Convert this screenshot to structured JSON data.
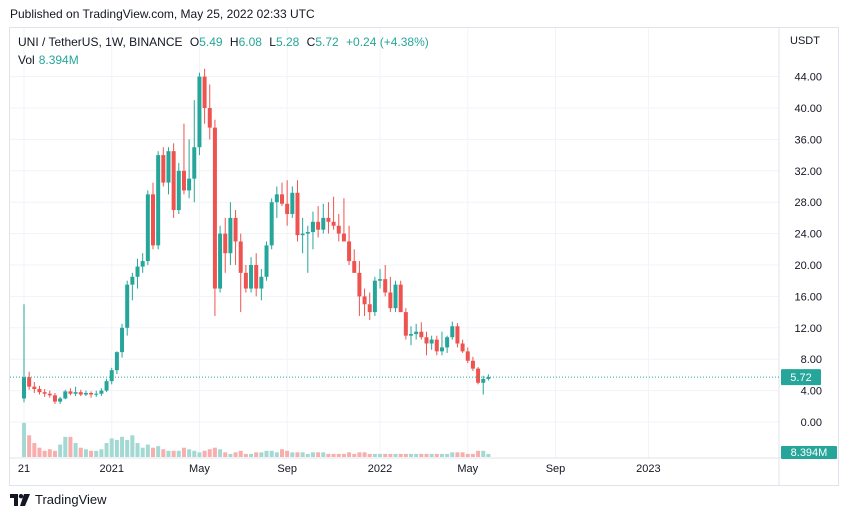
{
  "header": {
    "published": "Published on TradingView.com, May 25, 2022 02:33 UTC"
  },
  "legend": {
    "symbol": "UNI / TetherUS, 1W, BINANCE",
    "o_label": "O",
    "o": "5.49",
    "h_label": "H",
    "h": "6.08",
    "l_label": "L",
    "l": "5.28",
    "c_label": "C",
    "c": "5.72",
    "change": "+0.24 (+4.38%)",
    "vol_label": "Vol",
    "vol": "8.394M"
  },
  "currency": "USDT",
  "footer": {
    "brand": "TradingView"
  },
  "colors": {
    "up": "#26a69a",
    "down": "#ef5350",
    "up_vol": "#a3d9d3",
    "down_vol": "#f7aeac",
    "last_price": "#26a69a"
  },
  "chart_data": {
    "type": "candlestick",
    "title": "UNI / TetherUS, 1W, BINANCE",
    "ylim": [
      -4,
      48
    ],
    "y_ticks": [
      "44.00",
      "40.00",
      "36.00",
      "32.00",
      "28.00",
      "24.00",
      "20.00",
      "16.00",
      "12.00",
      "8.00",
      "4.00",
      "0.00"
    ],
    "y_tick_values": [
      44,
      40,
      36,
      32,
      28,
      24,
      20,
      16,
      12,
      8,
      4,
      0
    ],
    "x_ticks": [
      {
        "label": "21",
        "week": 0
      },
      {
        "label": "2021",
        "week": 17
      },
      {
        "label": "May",
        "week": 34
      },
      {
        "label": "Sep",
        "week": 51
      },
      {
        "label": "2022",
        "week": 69
      },
      {
        "label": "May",
        "week": 86
      },
      {
        "label": "Sep",
        "week": 103
      },
      {
        "label": "2023",
        "week": 121
      }
    ],
    "last_price": "5.72",
    "last_volume": "8.394M",
    "candles": [
      [
        3.0,
        15.0,
        2.5,
        5.7,
        22
      ],
      [
        5.7,
        6.4,
        4.1,
        4.5,
        14
      ],
      [
        4.5,
        5.1,
        3.7,
        4.2,
        9
      ],
      [
        4.2,
        4.6,
        3.5,
        3.8,
        6
      ],
      [
        3.8,
        4.2,
        3.2,
        3.6,
        4
      ],
      [
        3.6,
        4.0,
        3.1,
        3.4,
        5
      ],
      [
        3.4,
        3.7,
        2.3,
        2.6,
        4
      ],
      [
        2.6,
        3.2,
        2.3,
        3.0,
        8
      ],
      [
        3.0,
        4.1,
        2.9,
        3.9,
        13
      ],
      [
        3.9,
        4.3,
        3.4,
        3.6,
        13
      ],
      [
        3.6,
        4.5,
        3.3,
        3.8,
        9
      ],
      [
        3.8,
        4.1,
        3.3,
        3.5,
        6
      ],
      [
        3.5,
        4.0,
        3.3,
        3.7,
        5
      ],
      [
        3.7,
        3.9,
        3.1,
        3.5,
        4
      ],
      [
        3.5,
        4.0,
        3.2,
        3.6,
        4
      ],
      [
        3.6,
        4.3,
        3.3,
        4.0,
        5
      ],
      [
        4.0,
        5.5,
        3.8,
        5.2,
        9
      ],
      [
        5.2,
        6.9,
        4.8,
        6.6,
        12
      ],
      [
        6.6,
        9.0,
        6.1,
        8.9,
        11
      ],
      [
        8.9,
        12.5,
        8.2,
        12.0,
        13
      ],
      [
        12.0,
        18.0,
        11.0,
        17.5,
        11
      ],
      [
        17.5,
        19.0,
        15.5,
        18.5,
        14
      ],
      [
        18.5,
        20.8,
        17.0,
        19.8,
        9
      ],
      [
        19.8,
        21.5,
        19.0,
        20.5,
        6
      ],
      [
        20.5,
        29.5,
        20.0,
        29.0,
        8
      ],
      [
        29.0,
        30.5,
        22.0,
        22.5,
        6
      ],
      [
        22.5,
        34.5,
        22.0,
        34.0,
        7
      ],
      [
        34.0,
        35.0,
        30.0,
        30.5,
        5
      ],
      [
        30.5,
        35.0,
        29.0,
        34.5,
        4
      ],
      [
        34.5,
        35.5,
        26.0,
        27.0,
        4
      ],
      [
        27.0,
        33.0,
        26.5,
        32.0,
        4
      ],
      [
        32.0,
        38.0,
        29.0,
        29.5,
        6
      ],
      [
        29.5,
        36.0,
        28.5,
        31.0,
        5
      ],
      [
        31.0,
        41.0,
        28.0,
        35.0,
        4
      ],
      [
        35.0,
        44.5,
        34.0,
        44.0,
        3
      ],
      [
        44.0,
        45.0,
        38.0,
        40.0,
        4
      ],
      [
        40.0,
        43.0,
        36.0,
        37.5,
        5
      ],
      [
        37.5,
        38.5,
        13.5,
        17.0,
        6
      ],
      [
        17.0,
        25.0,
        16.5,
        24.0,
        5
      ],
      [
        24.0,
        26.0,
        19.0,
        21.5,
        3
      ],
      [
        21.5,
        28.0,
        20.0,
        26.0,
        2
      ],
      [
        26.0,
        27.0,
        20.0,
        23.0,
        3
      ],
      [
        23.0,
        24.0,
        14.0,
        19.0,
        4
      ],
      [
        19.0,
        20.0,
        16.5,
        17.0,
        2
      ],
      [
        17.0,
        21.0,
        16.5,
        20.0,
        2
      ],
      [
        20.0,
        21.5,
        16.0,
        17.0,
        3
      ],
      [
        17.0,
        19.5,
        15.5,
        18.5,
        3
      ],
      [
        18.5,
        23.0,
        18.0,
        22.5,
        4
      ],
      [
        22.5,
        28.5,
        22.0,
        28.0,
        4
      ],
      [
        28.0,
        30.0,
        26.0,
        29.0,
        3
      ],
      [
        29.0,
        30.5,
        27.5,
        27.8,
        5
      ],
      [
        27.8,
        30.8,
        25.0,
        26.5,
        4
      ],
      [
        26.5,
        30.0,
        26.0,
        29.2,
        3
      ],
      [
        29.2,
        30.8,
        23.0,
        23.8,
        3
      ],
      [
        23.8,
        26.0,
        21.5,
        24.0,
        3
      ],
      [
        24.0,
        25.0,
        19.0,
        24.2,
        2
      ],
      [
        24.2,
        26.8,
        22.0,
        25.5,
        3
      ],
      [
        25.5,
        27.5,
        23.5,
        24.5,
        3
      ],
      [
        24.5,
        27.8,
        24.0,
        26.0,
        3
      ],
      [
        26.0,
        28.0,
        24.0,
        25.5,
        2
      ],
      [
        25.5,
        28.7,
        24.5,
        25.0,
        2
      ],
      [
        25.0,
        26.5,
        23.0,
        24.0,
        2
      ],
      [
        24.0,
        28.5,
        23.0,
        23.0,
        2
      ],
      [
        23.0,
        25.0,
        20.0,
        20.5,
        3
      ],
      [
        20.5,
        22.0,
        19.0,
        19.0,
        2
      ],
      [
        19.0,
        20.5,
        13.5,
        16.0,
        3
      ],
      [
        16.0,
        17.0,
        13.5,
        15.0,
        3
      ],
      [
        15.0,
        16.5,
        13.0,
        14.0,
        2
      ],
      [
        14.0,
        18.5,
        13.5,
        18.0,
        2
      ],
      [
        18.0,
        19.5,
        17.0,
        18.2,
        2
      ],
      [
        18.2,
        20.0,
        16.0,
        16.5,
        2
      ],
      [
        16.5,
        18.5,
        14.0,
        14.5,
        2
      ],
      [
        14.5,
        18.0,
        14.0,
        17.5,
        2
      ],
      [
        17.5,
        18.0,
        14.0,
        14.0,
        2
      ],
      [
        14.0,
        14.5,
        10.5,
        11.0,
        2
      ],
      [
        11.0,
        12.2,
        9.8,
        11.2,
        2
      ],
      [
        11.2,
        12.5,
        10.5,
        11.5,
        2
      ],
      [
        11.5,
        12.7,
        10.5,
        10.8,
        2
      ],
      [
        10.8,
        11.5,
        8.5,
        10.0,
        2
      ],
      [
        10.0,
        11.0,
        9.2,
        10.5,
        2
      ],
      [
        10.5,
        11.0,
        8.5,
        9.0,
        2
      ],
      [
        9.0,
        11.5,
        8.5,
        9.5,
        2
      ],
      [
        9.5,
        11.0,
        8.8,
        10.8,
        2
      ],
      [
        10.8,
        12.8,
        10.5,
        12.2,
        3
      ],
      [
        12.2,
        12.6,
        9.5,
        10.0,
        3
      ],
      [
        10.0,
        10.5,
        8.8,
        9.0,
        3
      ],
      [
        9.0,
        9.5,
        7.5,
        7.8,
        2
      ],
      [
        7.8,
        8.3,
        6.5,
        6.8,
        2
      ],
      [
        6.8,
        7.0,
        4.8,
        5.0,
        4
      ],
      [
        5.0,
        5.9,
        3.5,
        5.49,
        4
      ],
      [
        5.49,
        6.08,
        5.28,
        5.72,
        2
      ]
    ]
  }
}
